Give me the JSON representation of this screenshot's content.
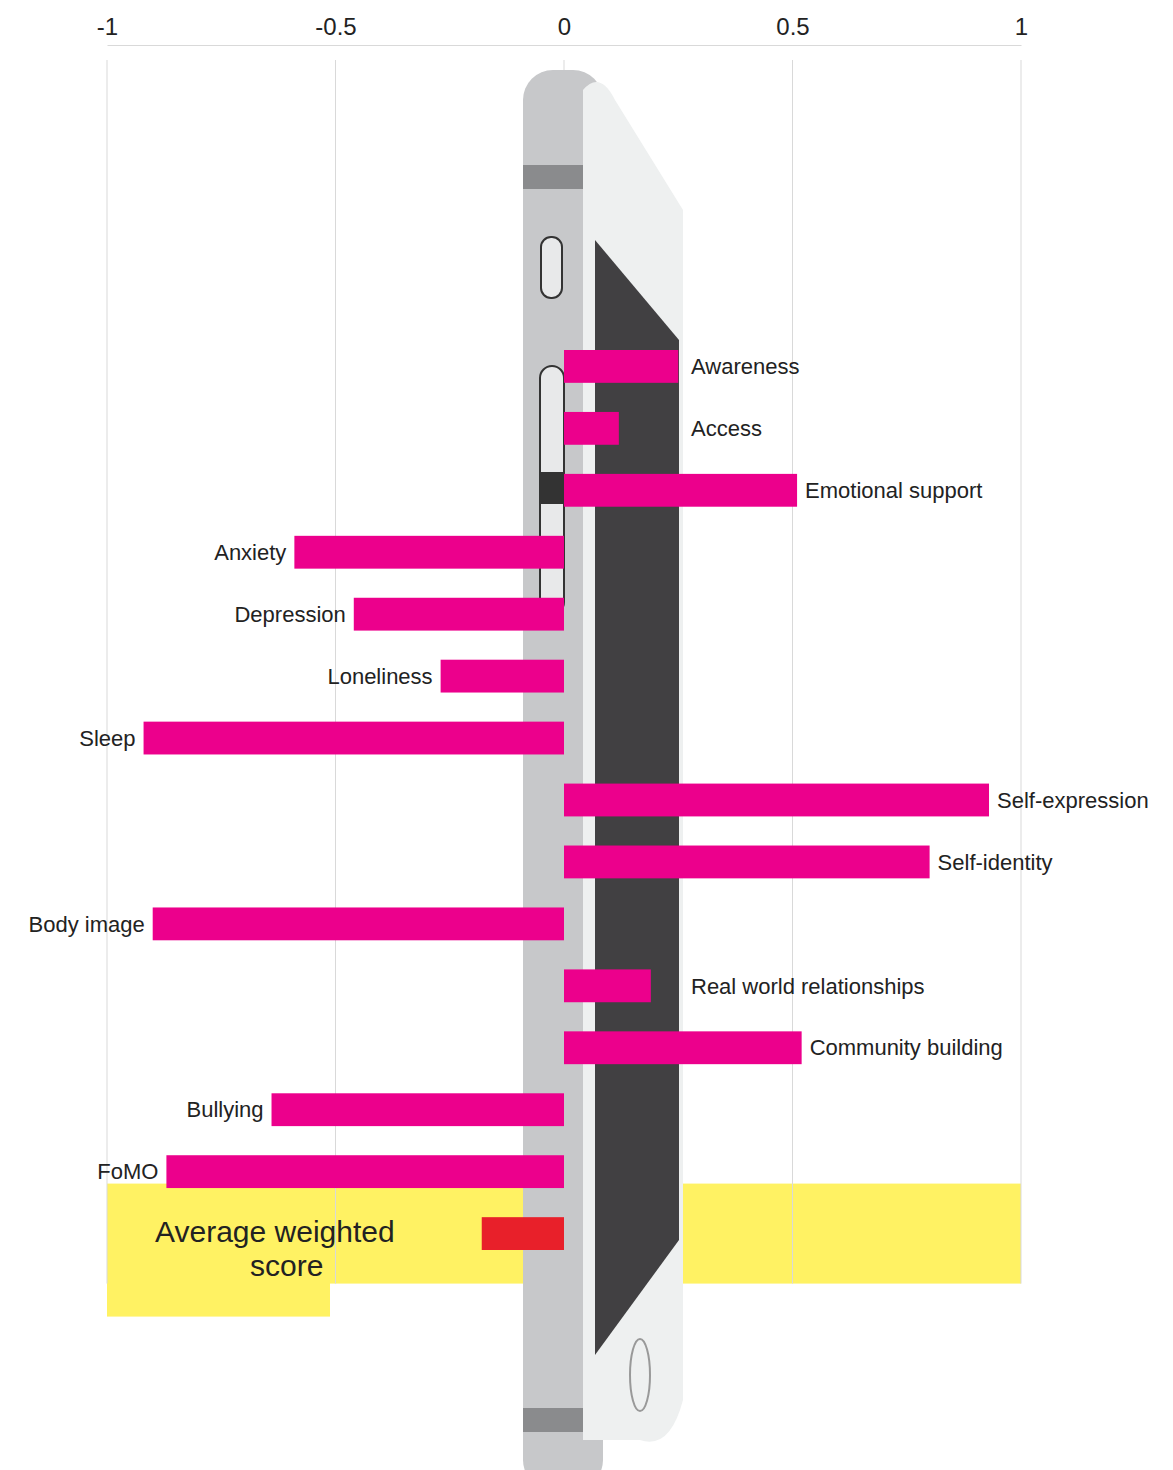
{
  "chart_data": {
    "type": "bar",
    "orientation": "horizontal",
    "categories": [
      "Awareness",
      "Access",
      "Emotional support",
      "Anxiety",
      "Depression",
      "Loneliness",
      "Sleep",
      "Self-expression",
      "Self-identity",
      "Body image",
      "Real world relationships",
      "Community building",
      "Bullying",
      "FoMO",
      "Average weighted score"
    ],
    "values": [
      0.25,
      0.12,
      0.51,
      -0.59,
      -0.46,
      -0.27,
      -0.92,
      0.93,
      0.8,
      -0.9,
      0.19,
      0.52,
      -0.64,
      -0.87,
      -0.18
    ],
    "colors": [
      "#ec008c",
      "#ec008c",
      "#ec008c",
      "#ec008c",
      "#ec008c",
      "#ec008c",
      "#ec008c",
      "#ec008c",
      "#ec008c",
      "#ec008c",
      "#ec008c",
      "#ec008c",
      "#ec008c",
      "#ec008c",
      "#e8202a"
    ],
    "xlim": [
      -1,
      1
    ],
    "xticks": [
      -1,
      -0.5,
      0,
      0.5,
      1
    ],
    "grid": true
  }
}
